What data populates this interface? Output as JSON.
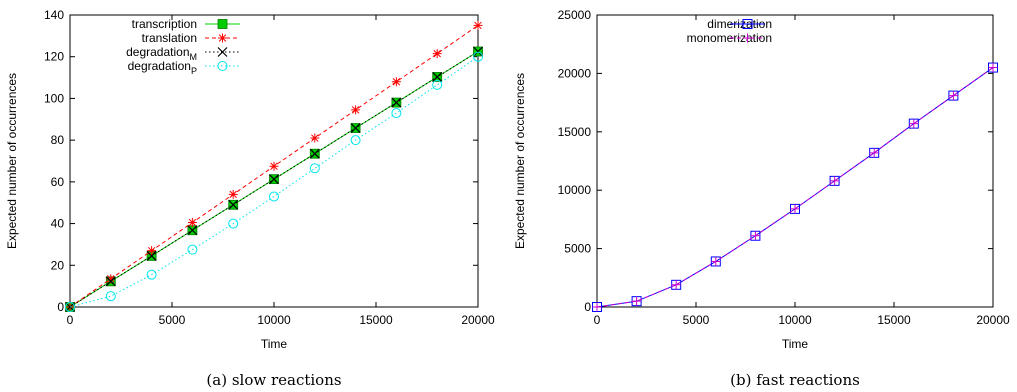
{
  "chart_data": [
    {
      "type": "line",
      "caption": "(a)  slow reactions",
      "xlabel": "Time",
      "ylabel": "Expected number of occurrences",
      "xlim": [
        0,
        20000
      ],
      "ylim": [
        0,
        140
      ],
      "x_ticks": [
        "0",
        "5000",
        "10000",
        "15000",
        "20000"
      ],
      "y_ticks": [
        "0",
        "20",
        "40",
        "60",
        "80",
        "100",
        "120",
        "140"
      ],
      "grid": false,
      "legend_position": "top-left",
      "x": [
        0,
        2000,
        4000,
        6000,
        8000,
        10000,
        12000,
        14000,
        16000,
        18000,
        20000
      ],
      "series": [
        {
          "name": "transcription",
          "subscript": "",
          "color": "#00cc00",
          "marker": "filled-square",
          "dash": "",
          "values": [
            0,
            12.3,
            24.5,
            36.8,
            49.0,
            61.3,
            73.5,
            85.8,
            98.0,
            110.3,
            122.5
          ]
        },
        {
          "name": "translation",
          "subscript": "",
          "color": "#ff0000",
          "marker": "asterisk",
          "dash": "4,3",
          "values": [
            0,
            13.5,
            27.0,
            40.5,
            54.0,
            67.5,
            81.0,
            94.5,
            108.0,
            121.5,
            135.0
          ]
        },
        {
          "name": "degradation",
          "subscript": "M",
          "color": "#000000",
          "marker": "cross",
          "dash": "1.5,2.5",
          "values": [
            0,
            12.3,
            24.5,
            36.8,
            49.0,
            61.3,
            73.5,
            85.8,
            98.0,
            110.3,
            122.5
          ]
        },
        {
          "name": "degradation",
          "subscript": "P",
          "color": "#00e5ee",
          "marker": "circle",
          "dash": "1.5,2.5",
          "values": [
            0,
            5.2,
            15.5,
            27.5,
            40.0,
            53.0,
            66.5,
            80.0,
            93.0,
            106.5,
            120.0
          ]
        }
      ]
    },
    {
      "type": "line",
      "caption": "(b)  fast reactions",
      "xlabel": "Time",
      "ylabel": "Expected number of occurrences",
      "xlim": [
        0,
        20000
      ],
      "ylim": [
        0,
        25000
      ],
      "x_ticks": [
        "0",
        "5000",
        "10000",
        "15000",
        "20000"
      ],
      "y_ticks": [
        "0",
        "5000",
        "10000",
        "15000",
        "20000",
        "25000"
      ],
      "grid": false,
      "legend_position": "top-left",
      "x": [
        0,
        2000,
        4000,
        6000,
        8000,
        10000,
        12000,
        14000,
        16000,
        18000,
        20000
      ],
      "series": [
        {
          "name": "dimerization",
          "subscript": "",
          "color": "#0000ff",
          "marker": "open-square",
          "dash": "",
          "values": [
            0,
            500,
            1900,
            3900,
            6100,
            8400,
            10800,
            13200,
            15700,
            18100,
            20500
          ]
        },
        {
          "name": "monomerization",
          "subscript": "",
          "color": "#cc00cc",
          "marker": "plus",
          "dash": "4,3",
          "values": [
            0,
            500,
            1900,
            3900,
            6100,
            8400,
            10800,
            13200,
            15700,
            18100,
            20500
          ]
        }
      ]
    }
  ]
}
